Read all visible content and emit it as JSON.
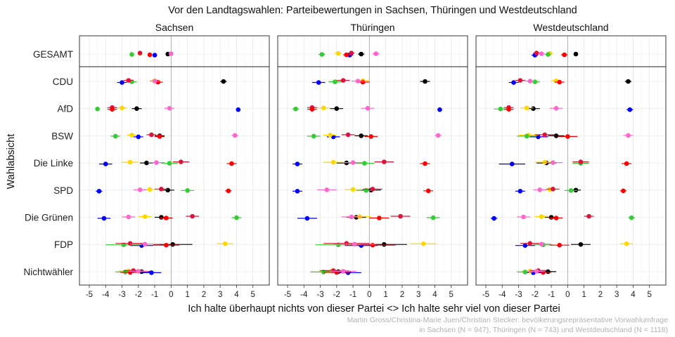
{
  "chart_data": {
    "type": "scatter",
    "title": "Vor den Landtagswahlen: Parteibewertungen in Sachsen, Thüringen und Westdeutschland",
    "xlabel": "Ich halte überhaupt nichts von dieser Partei <> Ich halte sehr viel von dieser Partei",
    "ylabel": "Wahlabsicht",
    "xlim": [
      -5.6,
      6.0
    ],
    "xticks": [
      -5,
      -4,
      -3,
      -2,
      -1,
      0,
      1,
      2,
      3,
      4,
      5
    ],
    "grid": true,
    "legend": "none",
    "caption": [
      "Martin Gross/Christina-Marie Juen/Christian Stecker: bevölkerungsrepräsentative Vorwahlumfrage",
      "in Sachsen (N = 947), Thüringen (N = 743) und Westdeutschland (N = 1118)"
    ],
    "panels": [
      "Sachsen",
      "Thüringen",
      "Westdeutschland"
    ],
    "top_group": [
      "GESAMT"
    ],
    "groups": [
      "CDU",
      "AfD",
      "BSW",
      "Die Linke",
      "SPD",
      "Die Grünen",
      "FDP",
      "Nichtwähler"
    ],
    "colors": {
      "black": "#000000",
      "blue": "#0000ff",
      "yellow": "#ffd700",
      "green": "#33cc33",
      "crimson": "#dc143c",
      "red": "#ff0000",
      "purple": "#7b2be2",
      "pink": "#ff66cc"
    },
    "points": {
      "Sachsen": {
        "GESAMT": [
          [
            "black",
            -0.2,
            0.1
          ],
          [
            "blue",
            -1.0,
            0.1
          ],
          [
            "yellow",
            -1.9,
            0.1
          ],
          [
            "green",
            -2.4,
            0.1
          ],
          [
            "crimson",
            -1.9,
            0.1
          ],
          [
            "red",
            -1.3,
            0.1
          ],
          [
            "pink",
            0.0,
            0.1
          ]
        ],
        "CDU": [
          [
            "black",
            3.2,
            0.2
          ],
          [
            "blue",
            -3.0,
            0.3
          ],
          [
            "yellow",
            -1.0,
            0.3
          ],
          [
            "green",
            -2.4,
            0.3
          ],
          [
            "crimson",
            -2.6,
            0.3
          ],
          [
            "red",
            -0.8,
            0.3
          ],
          [
            "pink",
            -1.0,
            0.3
          ]
        ],
        "AfD": [
          [
            "black",
            -2.1,
            0.3
          ],
          [
            "blue",
            4.1,
            0.1
          ],
          [
            "yellow",
            -3.0,
            0.3
          ],
          [
            "green",
            -4.5,
            0.1
          ],
          [
            "crimson",
            -3.6,
            0.3
          ],
          [
            "red",
            -3.6,
            0.3
          ],
          [
            "pink",
            -0.1,
            0.3
          ]
        ],
        "BSW": [
          [
            "black",
            -0.7,
            0.3
          ],
          [
            "blue",
            -2.0,
            0.3
          ],
          [
            "yellow",
            -2.4,
            0.3
          ],
          [
            "green",
            -3.4,
            0.3
          ],
          [
            "crimson",
            -1.2,
            0.3
          ],
          [
            "red",
            -0.7,
            0.3
          ],
          [
            "pink",
            3.9,
            0.2
          ]
        ],
        "Die Linke": [
          [
            "black",
            -1.5,
            0.4
          ],
          [
            "blue",
            -4.0,
            0.4
          ],
          [
            "yellow",
            -2.5,
            0.5
          ],
          [
            "green",
            -0.1,
            0.5
          ],
          [
            "crimson",
            0.6,
            0.5
          ],
          [
            "red",
            3.7,
            0.3
          ],
          [
            "pink",
            -0.9,
            0.5
          ]
        ],
        "SPD": [
          [
            "black",
            -0.2,
            0.4
          ],
          [
            "blue",
            -4.4,
            0.2
          ],
          [
            "yellow",
            -1.3,
            0.4
          ],
          [
            "green",
            1.0,
            0.4
          ],
          [
            "crimson",
            -0.6,
            0.4
          ],
          [
            "red",
            3.5,
            0.2
          ],
          [
            "pink",
            -1.9,
            0.4
          ]
        ],
        "Die Grünen": [
          [
            "black",
            -0.6,
            0.4
          ],
          [
            "blue",
            -4.1,
            0.4
          ],
          [
            "yellow",
            -1.6,
            0.4
          ],
          [
            "green",
            4.0,
            0.3
          ],
          [
            "crimson",
            1.3,
            0.4
          ],
          [
            "red",
            -0.3,
            0.4
          ],
          [
            "pink",
            -2.6,
            0.4
          ]
        ],
        "FDP": [
          [
            "black",
            0.1,
            1.2
          ],
          [
            "blue",
            -1.8,
            0.7
          ],
          [
            "yellow",
            3.3,
            0.5
          ],
          [
            "green",
            -2.9,
            1.1
          ],
          [
            "crimson",
            -2.5,
            0.9
          ],
          [
            "red",
            -0.3,
            0.8
          ],
          [
            "pink",
            -1.6,
            0.9
          ]
        ],
        "Nichtwähler": [
          [
            "black",
            -1.8,
            0.6
          ],
          [
            "blue",
            -1.2,
            0.6
          ],
          [
            "yellow",
            -2.6,
            0.6
          ],
          [
            "green",
            -2.8,
            0.6
          ],
          [
            "crimson",
            -2.3,
            0.6
          ],
          [
            "red",
            -2.5,
            0.6
          ],
          [
            "pink",
            -2.0,
            0.6
          ]
        ]
      },
      "Thüringen": {
        "GESAMT": [
          [
            "black",
            -0.5,
            0.2
          ],
          [
            "blue",
            -1.2,
            0.2
          ],
          [
            "yellow",
            -1.9,
            0.2
          ],
          [
            "green",
            -2.9,
            0.2
          ],
          [
            "crimson",
            -1.1,
            0.2
          ],
          [
            "red",
            -1.4,
            0.2
          ],
          [
            "pink",
            0.4,
            0.2
          ]
        ],
        "CDU": [
          [
            "black",
            3.4,
            0.3
          ],
          [
            "blue",
            -3.1,
            0.4
          ],
          [
            "yellow",
            -0.4,
            0.4
          ],
          [
            "green",
            -2.1,
            0.4
          ],
          [
            "crimson",
            -1.6,
            0.4
          ],
          [
            "red",
            -0.4,
            0.4
          ],
          [
            "pink",
            -0.7,
            0.4
          ]
        ],
        "AfD": [
          [
            "black",
            -2.0,
            0.4
          ],
          [
            "blue",
            4.3,
            0.1
          ],
          [
            "yellow",
            -2.8,
            0.4
          ],
          [
            "green",
            -4.5,
            0.2
          ],
          [
            "crimson",
            -3.5,
            0.3
          ],
          [
            "red",
            -3.5,
            0.3
          ],
          [
            "pink",
            -0.1,
            0.4
          ]
        ],
        "BSW": [
          [
            "black",
            -0.5,
            0.4
          ],
          [
            "blue",
            -2.2,
            0.4
          ],
          [
            "yellow",
            -2.4,
            0.4
          ],
          [
            "green",
            -3.4,
            0.4
          ],
          [
            "crimson",
            -1.3,
            0.4
          ],
          [
            "red",
            0.1,
            0.4
          ],
          [
            "pink",
            4.2,
            0.2
          ]
        ],
        "Die Linke": [
          [
            "black",
            -1.4,
            0.6
          ],
          [
            "blue",
            -4.4,
            0.3
          ],
          [
            "yellow",
            -2.2,
            0.6
          ],
          [
            "green",
            -0.3,
            0.6
          ],
          [
            "crimson",
            0.9,
            0.6
          ],
          [
            "red",
            3.4,
            0.3
          ],
          [
            "pink",
            -1.0,
            0.6
          ]
        ],
        "SPD": [
          [
            "black",
            0.1,
            0.6
          ],
          [
            "blue",
            -4.4,
            0.3
          ],
          [
            "yellow",
            -1.0,
            0.5
          ],
          [
            "green",
            -0.2,
            0.6
          ],
          [
            "crimson",
            0.2,
            0.6
          ],
          [
            "red",
            3.6,
            0.3
          ],
          [
            "pink",
            -2.6,
            0.6
          ]
        ],
        "Die Grünen": [
          [
            "black",
            -0.8,
            0.6
          ],
          [
            "blue",
            -3.8,
            0.6
          ],
          [
            "yellow",
            -0.6,
            0.7
          ],
          [
            "green",
            3.9,
            0.4
          ],
          [
            "crimson",
            1.9,
            0.6
          ],
          [
            "red",
            0.6,
            0.6
          ],
          [
            "pink",
            -1.1,
            0.6
          ]
        ],
        "FDP": [
          [
            "black",
            0.9,
            1.4
          ],
          [
            "blue",
            -0.5,
            1.0
          ],
          [
            "yellow",
            3.3,
            0.8
          ],
          [
            "green",
            -1.9,
            1.4
          ],
          [
            "crimson",
            -1.4,
            1.4
          ],
          [
            "red",
            0.2,
            1.4
          ],
          [
            "pink",
            -0.9,
            1.3
          ]
        ],
        "Nichtwähler": [
          [
            "black",
            -1.9,
            0.8
          ],
          [
            "blue",
            -1.3,
            0.8
          ],
          [
            "yellow",
            -2.3,
            0.8
          ],
          [
            "green",
            -2.8,
            0.8
          ],
          [
            "crimson",
            -2.2,
            0.8
          ],
          [
            "red",
            -2.0,
            0.8
          ],
          [
            "pink",
            -1.6,
            0.8
          ]
        ]
      },
      "Westdeutschland": {
        "GESAMT": [
          [
            "black",
            0.5,
            0.1
          ],
          [
            "blue",
            -2.0,
            0.2
          ],
          [
            "yellow",
            -1.1,
            0.2
          ],
          [
            "green",
            -1.2,
            0.2
          ],
          [
            "crimson",
            -1.9,
            0.2
          ],
          [
            "red",
            -0.2,
            0.2
          ],
          [
            "pink",
            -1.6,
            0.2
          ]
        ],
        "CDU": [
          [
            "black",
            3.7,
            0.2
          ],
          [
            "blue",
            -3.3,
            0.3
          ],
          [
            "yellow",
            -0.7,
            0.3
          ],
          [
            "green",
            -2.0,
            0.3
          ],
          [
            "crimson",
            -2.9,
            0.3
          ],
          [
            "red",
            -0.5,
            0.3
          ],
          [
            "pink",
            -2.3,
            0.3
          ]
        ],
        "AfD": [
          [
            "black",
            -2.1,
            0.4
          ],
          [
            "blue",
            3.8,
            0.2
          ],
          [
            "yellow",
            -2.5,
            0.4
          ],
          [
            "green",
            -4.1,
            0.4
          ],
          [
            "crimson",
            -3.6,
            0.3
          ],
          [
            "red",
            -3.6,
            0.3
          ],
          [
            "pink",
            -0.7,
            0.4
          ]
        ],
        "BSW": [
          [
            "black",
            -0.7,
            0.5
          ],
          [
            "blue",
            -1.8,
            0.6
          ],
          [
            "yellow",
            -2.4,
            0.6
          ],
          [
            "green",
            -2.5,
            0.6
          ],
          [
            "crimson",
            -1.4,
            0.6
          ],
          [
            "red",
            0.0,
            0.6
          ],
          [
            "pink",
            3.7,
            0.3
          ]
        ],
        "Die Linke": [
          [
            "black",
            -1.3,
            0.6
          ],
          [
            "blue",
            -3.4,
            0.8
          ],
          [
            "yellow",
            -1.4,
            0.6
          ],
          [
            "green",
            0.8,
            0.5
          ],
          [
            "crimson",
            0.8,
            0.5
          ],
          [
            "red",
            3.6,
            0.3
          ],
          [
            "pink",
            -0.9,
            0.6
          ]
        ],
        "SPD": [
          [
            "black",
            0.5,
            0.3
          ],
          [
            "blue",
            -2.9,
            0.3
          ],
          [
            "yellow",
            -1.1,
            0.4
          ],
          [
            "green",
            0.2,
            0.4
          ],
          [
            "crimson",
            -0.9,
            0.4
          ],
          [
            "red",
            3.4,
            0.2
          ],
          [
            "pink",
            -1.7,
            0.4
          ]
        ],
        "Die Grünen": [
          [
            "black",
            -1.0,
            0.4
          ],
          [
            "blue",
            -4.5,
            0.2
          ],
          [
            "yellow",
            -1.6,
            0.4
          ],
          [
            "green",
            3.9,
            0.2
          ],
          [
            "crimson",
            1.3,
            0.3
          ],
          [
            "red",
            -0.7,
            0.4
          ],
          [
            "pink",
            -2.7,
            0.4
          ]
        ],
        "FDP": [
          [
            "black",
            0.8,
            0.6
          ],
          [
            "blue",
            -2.6,
            0.6
          ],
          [
            "yellow",
            3.6,
            0.4
          ],
          [
            "green",
            -1.5,
            0.6
          ],
          [
            "crimson",
            -2.3,
            0.6
          ],
          [
            "red",
            -0.5,
            0.6
          ],
          [
            "pink",
            -1.6,
            0.6
          ]
        ],
        "Nichtwähler": [
          [
            "black",
            -1.2,
            0.5
          ],
          [
            "blue",
            -2.1,
            0.5
          ],
          [
            "yellow",
            -2.3,
            0.5
          ],
          [
            "green",
            -2.6,
            0.5
          ],
          [
            "crimson",
            -1.8,
            0.5
          ],
          [
            "red",
            -1.5,
            0.5
          ],
          [
            "pink",
            -1.9,
            0.5
          ]
        ]
      }
    }
  }
}
